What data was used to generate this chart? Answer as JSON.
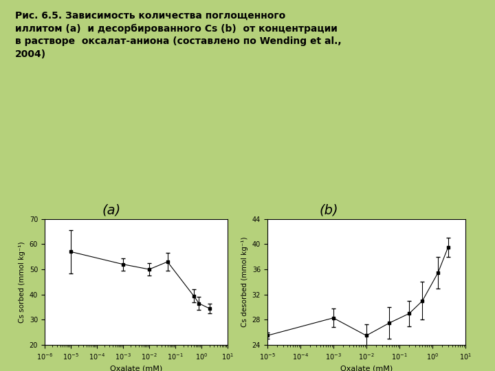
{
  "title_line1": "Рис. 6.5. Зависимость количества поглощенного",
  "title_line2": "иллитом (a)  и десорбированного Cs (b)  от концентрации",
  "title_line3": "в растворе  оксалат-аниона (составлено по Wending et al.,",
  "title_line4": "2004)",
  "bg_color": "#b5d17b",
  "label_a": "(a)",
  "label_b": "(b)",
  "plot_a": {
    "x": [
      1e-05,
      0.001,
      0.01,
      0.05,
      0.5,
      0.8,
      2.0
    ],
    "y": [
      57.0,
      52.0,
      50.0,
      53.0,
      39.5,
      36.5,
      34.5
    ],
    "yerr": [
      8.5,
      2.5,
      2.5,
      3.5,
      2.5,
      2.5,
      2.0
    ],
    "xlabel": "Oxalate (mM)",
    "ylabel": "Cs sorbed (mmol kg⁻¹)",
    "xlim_log": [
      -6,
      1
    ],
    "ylim": [
      20,
      70
    ],
    "yticks": [
      20,
      30,
      40,
      50,
      60,
      70
    ]
  },
  "plot_b": {
    "x": [
      1e-05,
      0.001,
      0.01,
      0.05,
      0.2,
      0.5,
      1.5,
      3.0
    ],
    "y": [
      25.5,
      28.3,
      25.5,
      27.5,
      29.0,
      31.0,
      35.5,
      39.5
    ],
    "yerr": [
      0.5,
      1.5,
      1.8,
      2.5,
      2.0,
      3.0,
      2.5,
      1.5
    ],
    "xlabel": "Oxalate (mM)",
    "ylabel": "Cs desorbed (mmol kg⁻¹)",
    "xlim_log": [
      -5,
      1
    ],
    "ylim": [
      24,
      44
    ],
    "yticks": [
      24,
      28,
      32,
      36,
      40,
      44
    ]
  }
}
